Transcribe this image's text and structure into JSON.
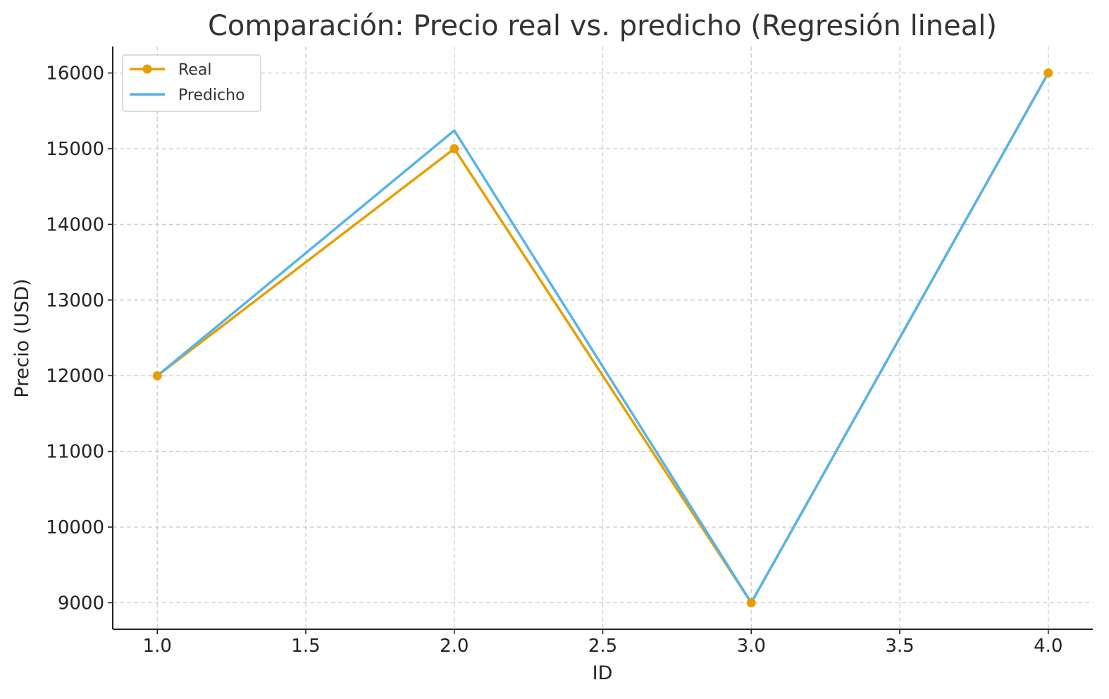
{
  "chart_data": {
    "type": "line",
    "title": "Comparación: Precio real vs. predicho (Regresión lineal)",
    "xlabel": "ID",
    "ylabel": "Precio (USD)",
    "x": [
      1,
      2,
      3,
      4
    ],
    "xlim": [
      0.85,
      4.15
    ],
    "ylim": [
      8650,
      16350
    ],
    "xticks": [
      1.0,
      1.5,
      2.0,
      2.5,
      3.0,
      3.5,
      4.0
    ],
    "xtick_labels": [
      "1.0",
      "1.5",
      "2.0",
      "2.5",
      "3.0",
      "3.5",
      "4.0"
    ],
    "yticks": [
      9000,
      10000,
      11000,
      12000,
      13000,
      14000,
      15000,
      16000
    ],
    "ytick_labels": [
      "9000",
      "10000",
      "11000",
      "12000",
      "13000",
      "14000",
      "15000",
      "16000"
    ],
    "grid": true,
    "legend_position": "top-left",
    "series": [
      {
        "name": "Real",
        "values": [
          12000,
          15000,
          9000,
          16000
        ],
        "color": "#E69F00",
        "marker": "circle"
      },
      {
        "name": "Predicho",
        "values": [
          12000,
          15240,
          9000,
          16000
        ],
        "color": "#56B4E9",
        "marker": "none"
      }
    ]
  }
}
